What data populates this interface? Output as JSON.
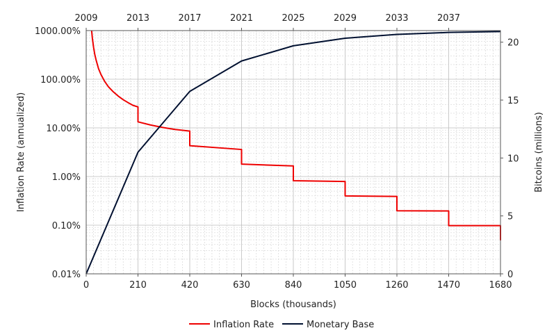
{
  "chart_data": {
    "type": "line",
    "xlabel": "Blocks (thousands)",
    "x_ticks": [
      "0",
      "210",
      "420",
      "630",
      "840",
      "1050",
      "1260",
      "1470",
      "1680"
    ],
    "x_range": [
      0,
      1680
    ],
    "top_axis_ticks": [
      "2009",
      "2013",
      "2017",
      "2021",
      "2025",
      "2029",
      "2033",
      "2037"
    ],
    "top_axis_tick_blocks": [
      0,
      210,
      420,
      630,
      840,
      1050,
      1260,
      1470
    ],
    "ylabel_left": "Inflation Rate (annualized)",
    "y_left_scale": "log",
    "y_left_ticks": [
      "0.01%",
      "0.10%",
      "1.00%",
      "10.00%",
      "100.00%",
      "1000.00%"
    ],
    "y_left_range": [
      0.01,
      1000
    ],
    "ylabel_right": "Bitcoins (millions)",
    "y_right_ticks": [
      "0",
      "5",
      "10",
      "15",
      "20"
    ],
    "y_right_range": [
      0,
      21
    ],
    "grid": true,
    "legend_position": "bottom",
    "series": [
      {
        "name": "Inflation Rate",
        "color": "#ee0000",
        "axis": "left",
        "x": [
          22,
          25,
          30,
          35,
          40,
          50,
          60,
          75,
          90,
          110,
          130,
          150,
          170,
          190,
          210,
          210,
          260,
          310,
          360,
          420,
          420,
          630,
          630,
          840,
          840,
          1050,
          1050,
          1260,
          1260,
          1470,
          1470,
          1680,
          1680
        ],
        "y": [
          1000,
          700,
          450,
          320,
          250,
          165,
          125,
          90,
          70,
          55,
          45,
          38,
          33,
          29,
          27,
          13.3,
          11.5,
          10.2,
          9.3,
          8.6,
          4.3,
          3.6,
          1.8,
          1.65,
          0.82,
          0.79,
          0.4,
          0.39,
          0.198,
          0.196,
          0.098,
          0.098,
          0.049
        ]
      },
      {
        "name": "Monetary Base",
        "color": "#001030",
        "axis": "right",
        "x": [
          0,
          210,
          420,
          630,
          840,
          1050,
          1260,
          1470,
          1680
        ],
        "y": [
          0,
          10.5,
          15.75,
          18.375,
          19.6875,
          20.34,
          20.67,
          20.84,
          20.92
        ]
      }
    ]
  }
}
